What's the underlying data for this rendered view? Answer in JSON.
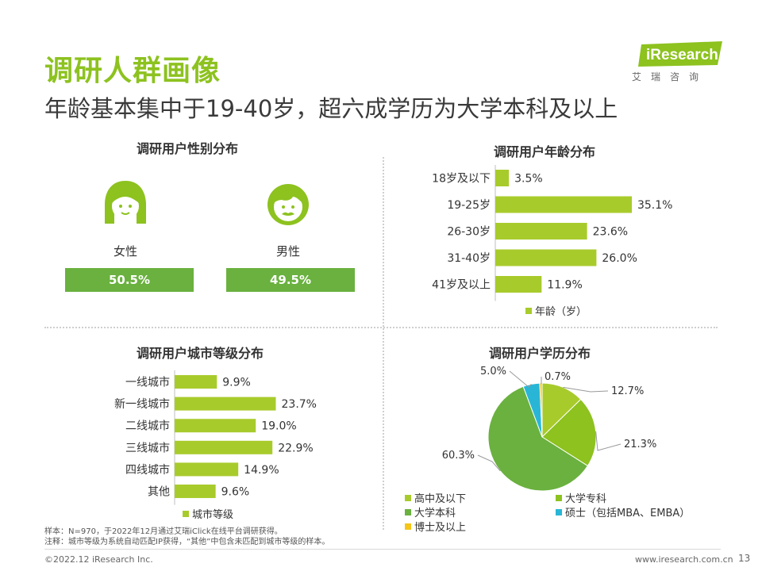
{
  "header": {
    "title": "调研人群画像",
    "subtitle": "年龄基本集中于19-40岁，超六成学历为大学本科及以上"
  },
  "logo": {
    "brand": "iResearch",
    "sub": "艾瑞咨询"
  },
  "colors": {
    "accent": "#8dc21f",
    "bar": "#a8cb2c",
    "gender_bar": "#6ab13f",
    "pie_high_school": "#a8cb2c",
    "pie_college": "#8dc21f",
    "pie_bachelor": "#6ab13f",
    "pie_master": "#29b6d6",
    "pie_phd": "#f5c518"
  },
  "gender": {
    "title": "调研用户性别分布",
    "female_label": "女性",
    "female_value": "50.5%",
    "male_label": "男性",
    "male_value": "49.5%"
  },
  "chart_data": [
    {
      "id": "age",
      "type": "bar",
      "orientation": "horizontal",
      "title": "调研用户年龄分布",
      "categories": [
        "18岁及以下",
        "19-25岁",
        "26-30岁",
        "31-40岁",
        "41岁及以上"
      ],
      "series": [
        {
          "name": "年龄（岁）",
          "values": [
            3.5,
            35.1,
            23.6,
            26.0,
            11.9
          ]
        }
      ],
      "value_labels": [
        "3.5%",
        "35.1%",
        "23.6%",
        "26.0%",
        "11.9%"
      ],
      "legend": "bottom",
      "grid": false
    },
    {
      "id": "city",
      "type": "bar",
      "orientation": "horizontal",
      "title": "调研用户城市等级分布",
      "categories": [
        "一线城市",
        "新一线城市",
        "二线城市",
        "三线城市",
        "四线城市",
        "其他"
      ],
      "series": [
        {
          "name": "城市等级",
          "values": [
            9.9,
            23.7,
            19.0,
            22.9,
            14.9,
            9.6
          ]
        }
      ],
      "value_labels": [
        "9.9%",
        "23.7%",
        "19.0%",
        "22.9%",
        "14.9%",
        "9.6%"
      ],
      "legend": "bottom",
      "grid": false
    },
    {
      "id": "education",
      "type": "pie",
      "title": "调研用户学历分布",
      "categories": [
        "高中及以下",
        "大学专科",
        "大学本科",
        "硕士（包括MBA、EMBA）",
        "博士及以上"
      ],
      "values": [
        12.7,
        21.3,
        60.3,
        5.0,
        0.7
      ],
      "value_labels": [
        "12.7%",
        "21.3%",
        "60.3%",
        "5.0%",
        "0.7%"
      ],
      "legend": "bottom"
    }
  ],
  "notes": {
    "line1": "样本：N=970，于2022年12月通过艾瑞iClick在线平台调研获得。",
    "line2": "注释：城市等级为系统自动匹配IP获得，“其他”中包含未匹配到城市等级的样本。"
  },
  "footer": {
    "copyright": "©2022.12 iResearch Inc.",
    "url": "www.iresearch.com.cn",
    "page": "13"
  }
}
